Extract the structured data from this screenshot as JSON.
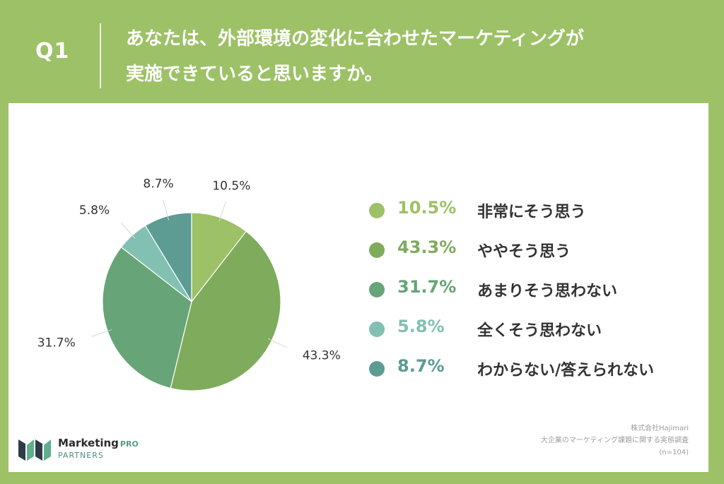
{
  "header": {
    "q_label": "Q1",
    "question_lines": [
      "あなたは、外部環境の変化に合わせたマーケティングが",
      "実施できていると思いますか。"
    ]
  },
  "chart_data": {
    "type": "pie",
    "slices": [
      {
        "label": "非常にそう思う",
        "value": 10.5,
        "pct_text": "10.5%",
        "color": "#9dc166"
      },
      {
        "label": "ややそう思う",
        "value": 43.3,
        "pct_text": "43.3%",
        "color": "#7fab5c"
      },
      {
        "label": "あまりそう思わない",
        "value": 31.7,
        "pct_text": "31.7%",
        "color": "#67a477"
      },
      {
        "label": "全くそう思わない",
        "value": 5.8,
        "pct_text": "5.8%",
        "color": "#82c1b1"
      },
      {
        "label": "わからない/答えられない",
        "value": 8.7,
        "pct_text": "8.7%",
        "color": "#5c9c92"
      }
    ],
    "legend_placement": "right"
  },
  "footer": {
    "logo_brand": "Marketing",
    "logo_brand_suffix": "PRO",
    "logo_sub": "PARTNERS",
    "source_lines": [
      "株式会社Hajimari",
      "大企業のマーケティング課題に関する実態調査",
      "(n=104)"
    ]
  }
}
